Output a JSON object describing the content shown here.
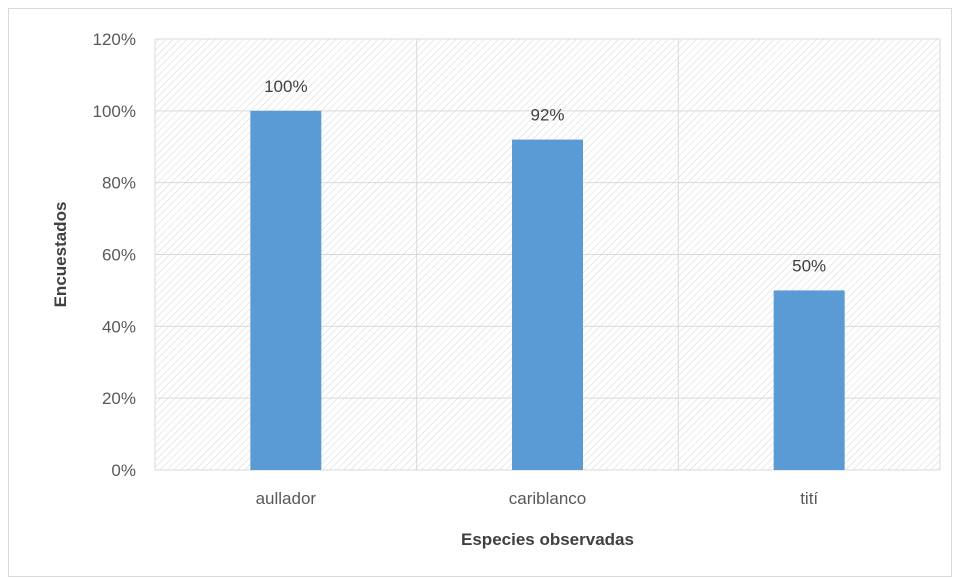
{
  "chart_data": {
    "type": "bar",
    "categories": [
      "aullador",
      "cariblanco",
      "tití"
    ],
    "values": [
      100,
      92,
      50
    ],
    "data_labels": [
      "100%",
      "92%",
      "50%"
    ],
    "xlabel": "Especies observadas",
    "ylabel": "Encuestados",
    "ylim": [
      0,
      120
    ],
    "yticks": [
      0,
      20,
      40,
      60,
      80,
      100,
      120
    ],
    "ytick_labels": [
      "0%",
      "20%",
      "40%",
      "60%",
      "80%",
      "100%",
      "120%"
    ],
    "grid": true,
    "legend": "none",
    "colors": {
      "bar": "#5b9bd5",
      "grid": "#d9d9d9",
      "hatch": "#d4d4d4"
    }
  }
}
